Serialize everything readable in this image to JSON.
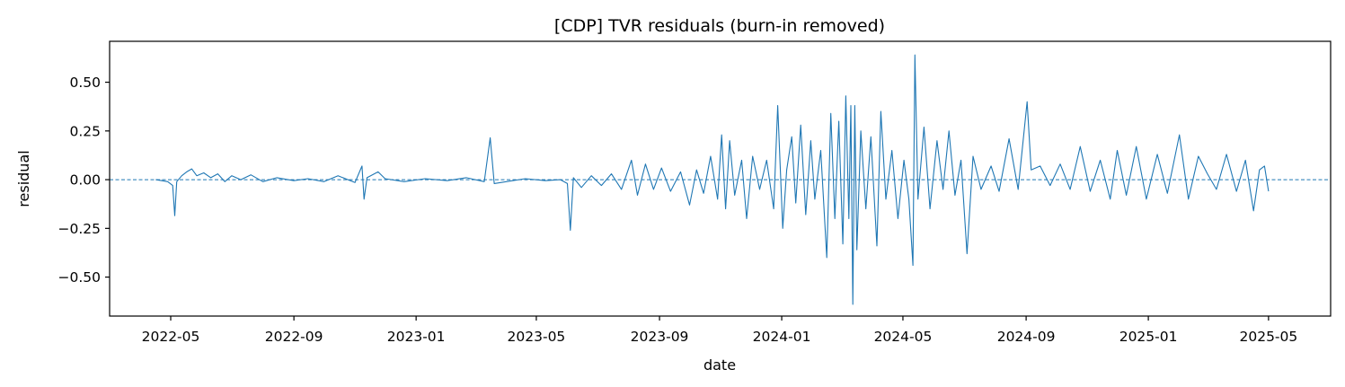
{
  "chart_data": {
    "type": "line",
    "title": "[CDP] TVR residuals (burn-in removed)",
    "xlabel": "date",
    "ylabel": "residual",
    "x_range": [
      "2022-03-01",
      "2025-07-02"
    ],
    "ylim": [
      -0.7,
      0.71
    ],
    "x_ticks": [
      "2022-05",
      "2022-09",
      "2023-01",
      "2023-05",
      "2023-09",
      "2024-01",
      "2024-05",
      "2024-09",
      "2025-01",
      "2025-05"
    ],
    "y_ticks": [
      0.5,
      0.25,
      0.0,
      -0.25,
      -0.5
    ],
    "y_tick_labels": [
      "0.50",
      "0.25",
      "0.00",
      "−0.25",
      "−0.50"
    ],
    "reference_line": {
      "y": 0.0,
      "style": "dashed"
    },
    "colors": {
      "series": "#1f77b4",
      "axes": "#000000"
    },
    "grid": false,
    "series": [
      {
        "color": "#1f77b4",
        "points": [
          {
            "x": "2022-04-16",
            "y": 0.0
          },
          {
            "x": "2022-04-22",
            "y": -0.005
          },
          {
            "x": "2022-04-28",
            "y": -0.01
          },
          {
            "x": "2022-05-03",
            "y": -0.03
          },
          {
            "x": "2022-05-05",
            "y": -0.185
          },
          {
            "x": "2022-05-07",
            "y": -0.01
          },
          {
            "x": "2022-05-12",
            "y": 0.02
          },
          {
            "x": "2022-05-17",
            "y": 0.04
          },
          {
            "x": "2022-05-22",
            "y": 0.055
          },
          {
            "x": "2022-05-27",
            "y": 0.02
          },
          {
            "x": "2022-06-03",
            "y": 0.035
          },
          {
            "x": "2022-06-10",
            "y": 0.01
          },
          {
            "x": "2022-06-17",
            "y": 0.03
          },
          {
            "x": "2022-06-24",
            "y": -0.01
          },
          {
            "x": "2022-07-01",
            "y": 0.02
          },
          {
            "x": "2022-07-10",
            "y": 0.0
          },
          {
            "x": "2022-07-20",
            "y": 0.025
          },
          {
            "x": "2022-08-01",
            "y": -0.01
          },
          {
            "x": "2022-08-15",
            "y": 0.01
          },
          {
            "x": "2022-09-01",
            "y": -0.005
          },
          {
            "x": "2022-09-15",
            "y": 0.005
          },
          {
            "x": "2022-10-01",
            "y": -0.01
          },
          {
            "x": "2022-10-15",
            "y": 0.02
          },
          {
            "x": "2022-11-01",
            "y": -0.015
          },
          {
            "x": "2022-11-08",
            "y": 0.07
          },
          {
            "x": "2022-11-10",
            "y": -0.1
          },
          {
            "x": "2022-11-13",
            "y": 0.01
          },
          {
            "x": "2022-11-24",
            "y": 0.04
          },
          {
            "x": "2022-12-01",
            "y": 0.005
          },
          {
            "x": "2022-12-20",
            "y": -0.01
          },
          {
            "x": "2023-01-10",
            "y": 0.005
          },
          {
            "x": "2023-02-01",
            "y": -0.005
          },
          {
            "x": "2023-02-20",
            "y": 0.01
          },
          {
            "x": "2023-03-10",
            "y": -0.01
          },
          {
            "x": "2023-03-16",
            "y": 0.215
          },
          {
            "x": "2023-03-20",
            "y": -0.02
          },
          {
            "x": "2023-04-01",
            "y": -0.01
          },
          {
            "x": "2023-04-20",
            "y": 0.005
          },
          {
            "x": "2023-05-10",
            "y": -0.005
          },
          {
            "x": "2023-05-25",
            "y": 0.0
          },
          {
            "x": "2023-06-01",
            "y": -0.02
          },
          {
            "x": "2023-06-04",
            "y": -0.26
          },
          {
            "x": "2023-06-07",
            "y": 0.01
          },
          {
            "x": "2023-06-15",
            "y": -0.04
          },
          {
            "x": "2023-06-25",
            "y": 0.02
          },
          {
            "x": "2023-07-05",
            "y": -0.03
          },
          {
            "x": "2023-07-15",
            "y": 0.03
          },
          {
            "x": "2023-07-25",
            "y": -0.05
          },
          {
            "x": "2023-08-04",
            "y": 0.1
          },
          {
            "x": "2023-08-10",
            "y": -0.08
          },
          {
            "x": "2023-08-18",
            "y": 0.08
          },
          {
            "x": "2023-08-26",
            "y": -0.05
          },
          {
            "x": "2023-09-03",
            "y": 0.06
          },
          {
            "x": "2023-09-12",
            "y": -0.06
          },
          {
            "x": "2023-09-22",
            "y": 0.04
          },
          {
            "x": "2023-10-01",
            "y": -0.13
          },
          {
            "x": "2023-10-08",
            "y": 0.05
          },
          {
            "x": "2023-10-15",
            "y": -0.07
          },
          {
            "x": "2023-10-22",
            "y": 0.12
          },
          {
            "x": "2023-10-29",
            "y": -0.1
          },
          {
            "x": "2023-11-02",
            "y": 0.23
          },
          {
            "x": "2023-11-06",
            "y": -0.15
          },
          {
            "x": "2023-11-10",
            "y": 0.2
          },
          {
            "x": "2023-11-15",
            "y": -0.08
          },
          {
            "x": "2023-11-22",
            "y": 0.1
          },
          {
            "x": "2023-11-27",
            "y": -0.2
          },
          {
            "x": "2023-12-03",
            "y": 0.12
          },
          {
            "x": "2023-12-10",
            "y": -0.05
          },
          {
            "x": "2023-12-17",
            "y": 0.1
          },
          {
            "x": "2023-12-24",
            "y": -0.15
          },
          {
            "x": "2023-12-28",
            "y": 0.38
          },
          {
            "x": "2024-01-02",
            "y": -0.25
          },
          {
            "x": "2024-01-06",
            "y": 0.05
          },
          {
            "x": "2024-01-11",
            "y": 0.22
          },
          {
            "x": "2024-01-15",
            "y": -0.12
          },
          {
            "x": "2024-01-20",
            "y": 0.28
          },
          {
            "x": "2024-01-25",
            "y": -0.18
          },
          {
            "x": "2024-01-30",
            "y": 0.2
          },
          {
            "x": "2024-02-03",
            "y": -0.1
          },
          {
            "x": "2024-02-09",
            "y": 0.15
          },
          {
            "x": "2024-02-15",
            "y": -0.4
          },
          {
            "x": "2024-02-19",
            "y": 0.34
          },
          {
            "x": "2024-02-23",
            "y": -0.2
          },
          {
            "x": "2024-02-27",
            "y": 0.3
          },
          {
            "x": "2024-03-02",
            "y": -0.33
          },
          {
            "x": "2024-03-05",
            "y": 0.43
          },
          {
            "x": "2024-03-08",
            "y": -0.2
          },
          {
            "x": "2024-03-10",
            "y": 0.38
          },
          {
            "x": "2024-03-12",
            "y": -0.64
          },
          {
            "x": "2024-03-14",
            "y": 0.38
          },
          {
            "x": "2024-03-16",
            "y": -0.36
          },
          {
            "x": "2024-03-20",
            "y": 0.25
          },
          {
            "x": "2024-03-25",
            "y": -0.15
          },
          {
            "x": "2024-03-30",
            "y": 0.22
          },
          {
            "x": "2024-04-05",
            "y": -0.34
          },
          {
            "x": "2024-04-09",
            "y": 0.35
          },
          {
            "x": "2024-04-14",
            "y": -0.1
          },
          {
            "x": "2024-04-20",
            "y": 0.15
          },
          {
            "x": "2024-04-26",
            "y": -0.2
          },
          {
            "x": "2024-05-02",
            "y": 0.1
          },
          {
            "x": "2024-05-07",
            "y": -0.1
          },
          {
            "x": "2024-05-11",
            "y": -0.44
          },
          {
            "x": "2024-05-13",
            "y": 0.64
          },
          {
            "x": "2024-05-16",
            "y": -0.1
          },
          {
            "x": "2024-05-22",
            "y": 0.27
          },
          {
            "x": "2024-05-28",
            "y": -0.15
          },
          {
            "x": "2024-06-04",
            "y": 0.2
          },
          {
            "x": "2024-06-10",
            "y": -0.05
          },
          {
            "x": "2024-06-16",
            "y": 0.25
          },
          {
            "x": "2024-06-22",
            "y": -0.08
          },
          {
            "x": "2024-06-28",
            "y": 0.1
          },
          {
            "x": "2024-07-04",
            "y": -0.38
          },
          {
            "x": "2024-07-10",
            "y": 0.12
          },
          {
            "x": "2024-07-18",
            "y": -0.05
          },
          {
            "x": "2024-07-28",
            "y": 0.07
          },
          {
            "x": "2024-08-05",
            "y": -0.06
          },
          {
            "x": "2024-08-15",
            "y": 0.21
          },
          {
            "x": "2024-08-24",
            "y": -0.05
          },
          {
            "x": "2024-09-02",
            "y": 0.4
          },
          {
            "x": "2024-09-06",
            "y": 0.05
          },
          {
            "x": "2024-09-15",
            "y": 0.07
          },
          {
            "x": "2024-09-25",
            "y": -0.03
          },
          {
            "x": "2024-10-05",
            "y": 0.08
          },
          {
            "x": "2024-10-15",
            "y": -0.05
          },
          {
            "x": "2024-10-25",
            "y": 0.17
          },
          {
            "x": "2024-11-04",
            "y": -0.06
          },
          {
            "x": "2024-11-14",
            "y": 0.1
          },
          {
            "x": "2024-11-24",
            "y": -0.1
          },
          {
            "x": "2024-12-01",
            "y": 0.15
          },
          {
            "x": "2024-12-10",
            "y": -0.08
          },
          {
            "x": "2024-12-20",
            "y": 0.17
          },
          {
            "x": "2024-12-30",
            "y": -0.1
          },
          {
            "x": "2025-01-10",
            "y": 0.13
          },
          {
            "x": "2025-01-20",
            "y": -0.07
          },
          {
            "x": "2025-02-01",
            "y": 0.23
          },
          {
            "x": "2025-02-10",
            "y": -0.1
          },
          {
            "x": "2025-02-20",
            "y": 0.12
          },
          {
            "x": "2025-03-01",
            "y": 0.03
          },
          {
            "x": "2025-03-10",
            "y": -0.05
          },
          {
            "x": "2025-03-20",
            "y": 0.13
          },
          {
            "x": "2025-03-30",
            "y": -0.06
          },
          {
            "x": "2025-04-08",
            "y": 0.1
          },
          {
            "x": "2025-04-16",
            "y": -0.16
          },
          {
            "x": "2025-04-22",
            "y": 0.05
          },
          {
            "x": "2025-04-27",
            "y": 0.07
          },
          {
            "x": "2025-05-01",
            "y": -0.06
          }
        ]
      }
    ]
  }
}
